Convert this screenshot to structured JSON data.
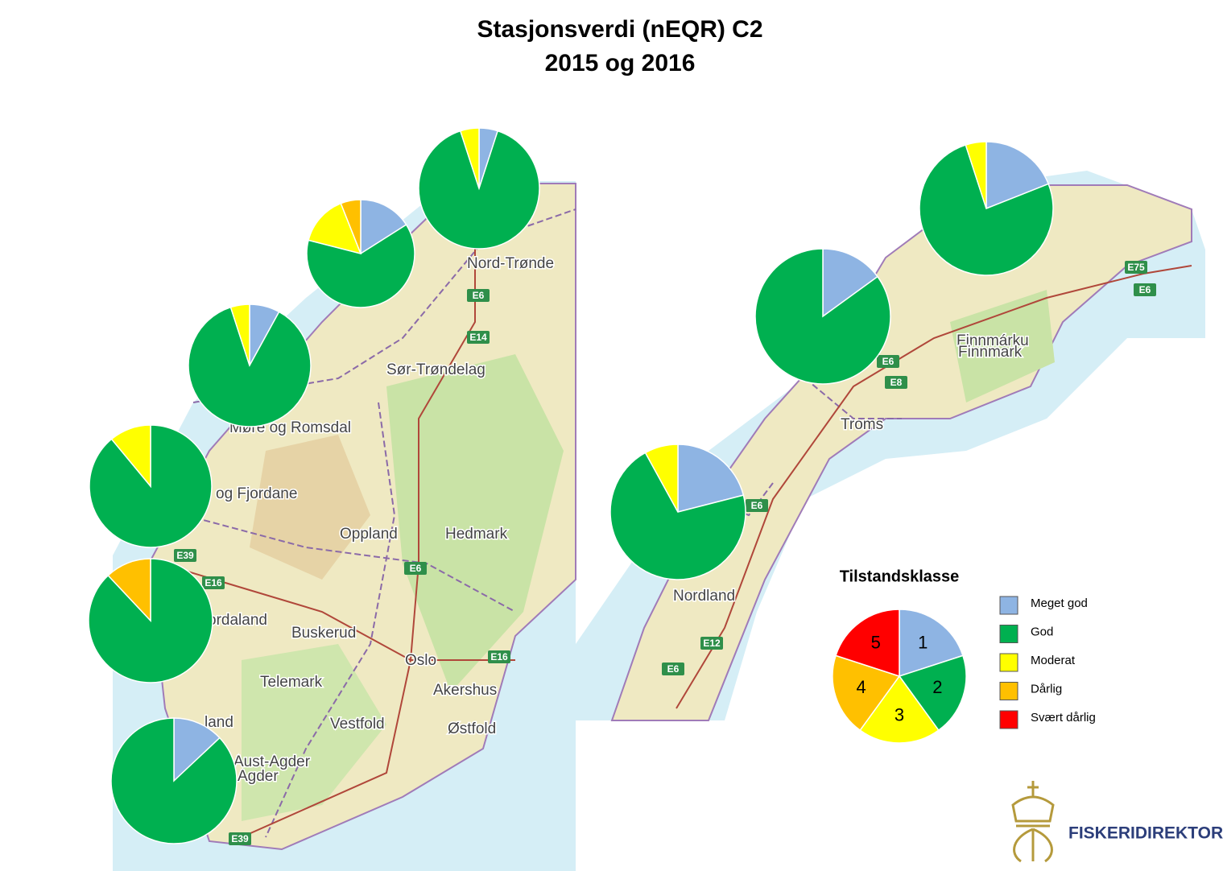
{
  "title": "Stasjonsverdi (nEQR) C2",
  "subtitle": "2015 og 2016",
  "legend": {
    "title": "Tilstandsklasse",
    "classes": [
      {
        "name": "Meget god",
        "label": "1",
        "color": "#8eb4e3"
      },
      {
        "name": "God",
        "label": "2",
        "color": "#00b050"
      },
      {
        "name": "Moderat",
        "label": "3",
        "color": "#ffff00"
      },
      {
        "name": "Dårlig",
        "label": "4",
        "color": "#ffc000"
      },
      {
        "name": "Svært dårlig",
        "label": "5",
        "color": "#ff0000"
      }
    ],
    "key_values": [
      20,
      20,
      20,
      20,
      20
    ]
  },
  "pies": [
    {
      "values": [
        5,
        90,
        5,
        0,
        0
      ]
    },
    {
      "values": [
        16,
        63,
        15,
        6,
        0
      ]
    },
    {
      "values": [
        8,
        87,
        5,
        0,
        0
      ]
    },
    {
      "values": [
        0,
        89,
        11,
        0,
        0
      ]
    },
    {
      "values": [
        0,
        88,
        0,
        12,
        0
      ]
    },
    {
      "values": [
        13,
        87,
        0,
        0,
        0
      ]
    },
    {
      "values": [
        15,
        85,
        0,
        0,
        0
      ]
    },
    {
      "values": [
        19,
        76,
        5,
        0,
        0
      ]
    },
    {
      "values": [
        21,
        71,
        8,
        0,
        0
      ]
    }
  ],
  "map_labels": [
    "Nord-Trønde",
    "Sør-Trøndelag",
    "Møre og Romsdal",
    "og Fjordane",
    "Oppland",
    "Hedmark",
    "ordaland",
    "Buskerud",
    "Oslo",
    "Akershus",
    "Telemark",
    "Vestfold",
    "Østfold",
    "land",
    "Aust-Agder",
    "Agder",
    "Finnmárku",
    "Finnmark",
    "Troms",
    "Nordland"
  ],
  "road_labels": [
    "E6",
    "E14",
    "E6",
    "E16",
    "E39",
    "E16",
    "E39",
    "E75",
    "E6",
    "E6",
    "E8",
    "E6",
    "E12",
    "E6"
  ],
  "logo": "FISKERIDIREKTORATET"
}
